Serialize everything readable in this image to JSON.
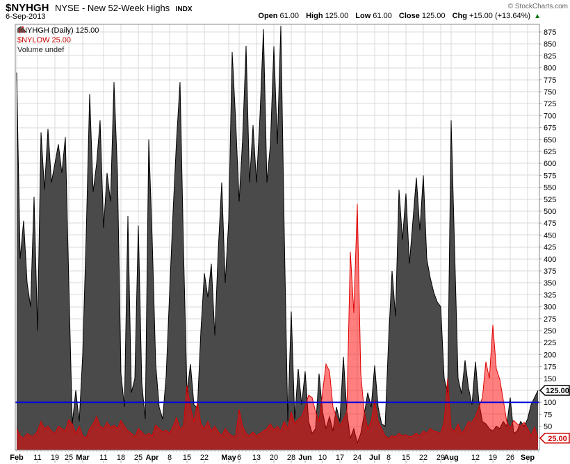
{
  "header": {
    "symbol": "$NYHGH",
    "description": "NYSE - New 52-Week Highs",
    "index_tag": "INDX",
    "date": "6-Sep-2013",
    "copyright": "© StockCharts.com"
  },
  "quote": {
    "open_label": "Open",
    "open": "61.00",
    "high_label": "High",
    "high": "125.00",
    "low_label": "Low",
    "low": "61.00",
    "close_label": "Close",
    "close": "125.00",
    "chg_label": "Chg",
    "chg": "+15.00 (+13.64%)",
    "direction_arrow": "▲"
  },
  "legend": {
    "items": [
      {
        "id": "nyhgh",
        "label": "$NYHGH (Daily) 125.00",
        "color": "#000000",
        "icon": "area-black"
      },
      {
        "id": "nylow",
        "label": "$NYLOW 25.00",
        "color": "#cc0000",
        "icon": "area-red"
      },
      {
        "id": "volume",
        "label": "Volume undef",
        "color": "#222222",
        "icon": "bars-gray"
      }
    ]
  },
  "chart_data": {
    "type": "area",
    "title": "$NYHGH NYSE - New 52-Week Highs INDX",
    "y_max": 891,
    "y_tick_step": 25,
    "y_label_min": 50,
    "y_label_max": 875,
    "grid": true,
    "hline": {
      "value": 100,
      "color": "#0000dd"
    },
    "x_dates": [
      "Feb 1",
      "Feb 4",
      "Feb 5",
      "Feb 6",
      "Feb 7",
      "Feb 8",
      "Feb 11",
      "Feb 12",
      "Feb 13",
      "Feb 14",
      "Feb 15",
      "Feb 19",
      "Feb 20",
      "Feb 21",
      "Feb 22",
      "Feb 25",
      "Feb 26",
      "Feb 27",
      "Feb 28",
      "Mar 1",
      "Mar 4",
      "Mar 5",
      "Mar 6",
      "Mar 7",
      "Mar 8",
      "Mar 11",
      "Mar 12",
      "Mar 13",
      "Mar 14",
      "Mar 15",
      "Mar 18",
      "Mar 19",
      "Mar 20",
      "Mar 21",
      "Mar 22",
      "Mar 25",
      "Mar 26",
      "Mar 27",
      "Mar 28",
      "Apr 1",
      "Apr 2",
      "Apr 3",
      "Apr 4",
      "Apr 5",
      "Apr 8",
      "Apr 9",
      "Apr 10",
      "Apr 11",
      "Apr 12",
      "Apr 15",
      "Apr 16",
      "Apr 17",
      "Apr 18",
      "Apr 19",
      "Apr 22",
      "Apr 23",
      "Apr 24",
      "Apr 25",
      "Apr 26",
      "Apr 29",
      "Apr 30",
      "May 1",
      "May 2",
      "May 3",
      "May 6",
      "May 7",
      "May 8",
      "May 9",
      "May 10",
      "May 13",
      "May 14",
      "May 15",
      "May 16",
      "May 17",
      "May 20",
      "May 21",
      "May 22",
      "May 23",
      "May 24",
      "May 28",
      "May 29",
      "May 30",
      "May 31",
      "Jun 3",
      "Jun 4",
      "Jun 5",
      "Jun 6",
      "Jun 7",
      "Jun 10",
      "Jun 11",
      "Jun 12",
      "Jun 13",
      "Jun 14",
      "Jun 17",
      "Jun 18",
      "Jun 19",
      "Jun 20",
      "Jun 21",
      "Jun 24",
      "Jun 25",
      "Jun 26",
      "Jun 27",
      "Jun 28",
      "Jul 1",
      "Jul 2",
      "Jul 3",
      "Jul 5",
      "Jul 8",
      "Jul 9",
      "Jul 10",
      "Jul 11",
      "Jul 12",
      "Jul 15",
      "Jul 16",
      "Jul 17",
      "Jul 18",
      "Jul 19",
      "Jul 22",
      "Jul 23",
      "Jul 24",
      "Jul 25",
      "Jul 26",
      "Jul 29",
      "Jul 30",
      "Jul 31",
      "Aug 1",
      "Aug 2",
      "Aug 5",
      "Aug 6",
      "Aug 7",
      "Aug 8",
      "Aug 9",
      "Aug 12",
      "Aug 13",
      "Aug 14",
      "Aug 15",
      "Aug 16",
      "Aug 19",
      "Aug 20",
      "Aug 21",
      "Aug 22",
      "Aug 23",
      "Aug 26",
      "Aug 27",
      "Aug 28",
      "Aug 29",
      "Aug 30",
      "Sep 3",
      "Sep 4",
      "Sep 5",
      "Sep 6"
    ],
    "series": [
      {
        "name": "$NYHGH",
        "fill": "#4a4a4a",
        "stroke": "#000000",
        "opacity": 1,
        "values": [
          790,
          400,
          480,
          350,
          300,
          530,
          250,
          665,
          545,
          672,
          560,
          600,
          640,
          580,
          655,
          350,
          55,
          125,
          60,
          200,
          450,
          745,
          540,
          600,
          690,
          465,
          580,
          520,
          770,
          580,
          160,
          90,
          490,
          120,
          150,
          470,
          140,
          65,
          650,
          440,
          180,
          90,
          65,
          155,
          330,
          500,
          650,
          770,
          420,
          120,
          180,
          95,
          88,
          250,
          370,
          320,
          390,
          240,
          420,
          560,
          350,
          480,
          833,
          690,
          520,
          650,
          846,
          560,
          680,
          560,
          700,
          881,
          560,
          640,
          845,
          640,
          888,
          450,
          60,
          290,
          65,
          170,
          95,
          165,
          60,
          35,
          45,
          160,
          80,
          45,
          70,
          40,
          90,
          60,
          195,
          80,
          25,
          45,
          15,
          35,
          75,
          120,
          90,
          177,
          90,
          55,
          50,
          230,
          375,
          280,
          545,
          440,
          537,
          390,
          480,
          570,
          460,
          575,
          400,
          360,
          330,
          310,
          300,
          150,
          120,
          690,
          420,
          150,
          118,
          188,
          130,
          95,
          185,
          100,
          60,
          55,
          45,
          40,
          50,
          45,
          60,
          50,
          110,
          35,
          40,
          60,
          50,
          65,
          95,
          110,
          125
        ]
      },
      {
        "name": "$NYLOW",
        "fill": "#ff0000",
        "stroke": "#dd0000",
        "opacity": 0.5,
        "values": [
          45,
          30,
          25,
          35,
          30,
          30,
          40,
          60,
          45,
          50,
          40,
          35,
          50,
          45,
          40,
          64,
          55,
          35,
          50,
          30,
          25,
          45,
          55,
          70,
          50,
          45,
          58,
          48,
          52,
          45,
          62,
          50,
          40,
          35,
          28,
          45,
          38,
          30,
          35,
          30,
          52,
          45,
          38,
          42,
          35,
          50,
          68,
          45,
          50,
          135,
          90,
          60,
          100,
          55,
          45,
          60,
          40,
          50,
          38,
          30,
          45,
          35,
          30,
          28,
          85,
          50,
          35,
          30,
          38,
          30,
          35,
          40,
          45,
          55,
          42,
          50,
          40,
          60,
          45,
          80,
          55,
          65,
          70,
          90,
          115,
          110,
          80,
          60,
          120,
          180,
          165,
          90,
          70,
          50,
          65,
          80,
          415,
          287,
          515,
          160,
          80,
          45,
          60,
          105,
          60,
          45,
          30,
          25,
          30,
          28,
          35,
          30,
          32,
          28,
          30,
          35,
          30,
          40,
          35,
          45,
          40,
          38,
          35,
          60,
          150,
          45,
          40,
          55,
          35,
          45,
          60,
          58,
          70,
          90,
          110,
          185,
          150,
          262,
          170,
          148,
          105,
          60,
          45,
          62,
          55,
          50,
          58,
          45,
          30,
          48,
          25
        ]
      }
    ],
    "x_ticks": [
      {
        "i": 0,
        "label": "Feb",
        "bold": true
      },
      {
        "i": 6,
        "label": "11"
      },
      {
        "i": 11,
        "label": "19"
      },
      {
        "i": 15,
        "label": "25"
      },
      {
        "i": 19,
        "label": "Mar",
        "bold": true
      },
      {
        "i": 25,
        "label": "11"
      },
      {
        "i": 30,
        "label": "18"
      },
      {
        "i": 35,
        "label": "25"
      },
      {
        "i": 39,
        "label": "Apr",
        "bold": true
      },
      {
        "i": 44,
        "label": "8"
      },
      {
        "i": 49,
        "label": "15"
      },
      {
        "i": 54,
        "label": "22"
      },
      {
        "i": 61,
        "label": "May",
        "bold": true
      },
      {
        "i": 64,
        "label": "6"
      },
      {
        "i": 69,
        "label": "13"
      },
      {
        "i": 74,
        "label": "20"
      },
      {
        "i": 79,
        "label": "28"
      },
      {
        "i": 83,
        "label": "Jun",
        "bold": true
      },
      {
        "i": 88,
        "label": "10"
      },
      {
        "i": 93,
        "label": "17"
      },
      {
        "i": 98,
        "label": "24"
      },
      {
        "i": 103,
        "label": "Jul",
        "bold": true
      },
      {
        "i": 107,
        "label": "8"
      },
      {
        "i": 112,
        "label": "15"
      },
      {
        "i": 117,
        "label": "22"
      },
      {
        "i": 122,
        "label": "29"
      },
      {
        "i": 125,
        "label": "Aug",
        "bold": true
      },
      {
        "i": 132,
        "label": "12"
      },
      {
        "i": 137,
        "label": "19"
      },
      {
        "i": 142,
        "label": "26"
      },
      {
        "i": 147,
        "label": "Sep",
        "bold": true
      }
    ],
    "value_tags": [
      {
        "text": "125.00",
        "value": 125,
        "color": "#000000"
      },
      {
        "text": "25.00",
        "value": 25,
        "color": "#cc0000"
      }
    ],
    "colors": {
      "grid": "#d8d8d8",
      "border": "#888888",
      "tick": "#999999",
      "label": "#000000"
    }
  }
}
